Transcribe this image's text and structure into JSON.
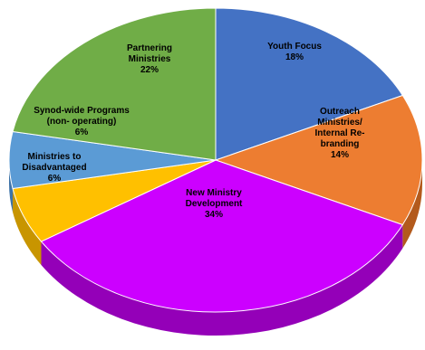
{
  "chart_data": {
    "type": "pie",
    "style": "3d-tilted",
    "legend": "none",
    "title": "",
    "slices": [
      {
        "name": "Youth Focus",
        "value": 18,
        "label_lines": [
          "Youth Focus",
          "18%"
        ],
        "color": "#4472C4",
        "side_color": "#2E5491",
        "text_color": "#000000"
      },
      {
        "name": "Outreach Ministries/ Internal Re-branding",
        "value": 14,
        "label_lines": [
          "Outreach",
          "Ministries/",
          "Internal Re-",
          "branding",
          "14%"
        ],
        "color": "#ED7D31",
        "side_color": "#B35A1C",
        "text_color": "#000000"
      },
      {
        "name": "New Ministry Development",
        "value": 34,
        "label_lines": [
          "New Ministry",
          "Development",
          "34%"
        ],
        "color": "#CC00FF",
        "side_color": "#9400B8",
        "text_color": "#000000"
      },
      {
        "name": "Ministries to Disadvantaged",
        "value": 6,
        "label_lines": [
          "Ministries to",
          "Disadvantaged",
          "6%"
        ],
        "color": "#FFC000",
        "side_color": "#C89500",
        "text_color": "#000000"
      },
      {
        "name": "Synod-wide Programs (non- operating)",
        "value": 6,
        "label_lines": [
          "Synod-wide Programs",
          "(non- operating)",
          "6%"
        ],
        "color": "#5B9BD5",
        "side_color": "#3E73A8",
        "text_color": "#000000"
      },
      {
        "name": "Partnering Ministries",
        "value": 22,
        "label_lines": [
          "Partnering",
          "Ministries",
          "22%"
        ],
        "color": "#70AD47",
        "side_color": "#4E8030",
        "text_color": "#000000"
      }
    ]
  }
}
